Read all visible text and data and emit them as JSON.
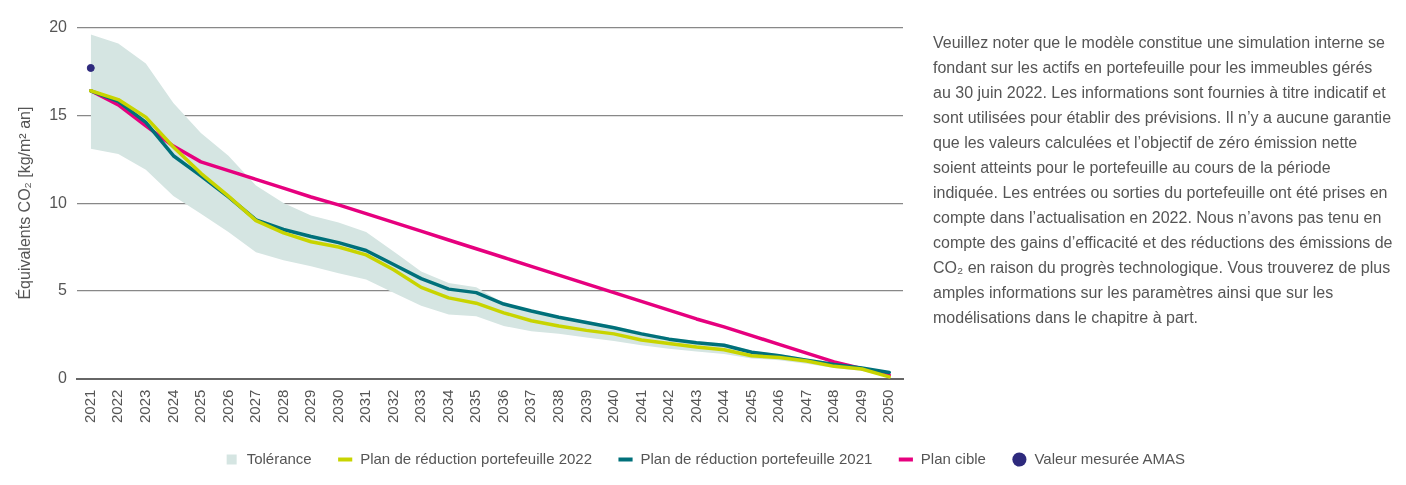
{
  "chart_data": {
    "type": "line",
    "ylabel": "Équivalents CO₂ [kg/m² an]",
    "categories": [
      "2021",
      "2022",
      "2023",
      "2024",
      "2025",
      "2026",
      "2027",
      "2028",
      "2029",
      "2030",
      "2031",
      "2032",
      "2033",
      "2034",
      "2035",
      "2036",
      "2037",
      "2038",
      "2039",
      "2040",
      "2041",
      "2042",
      "2043",
      "2044",
      "2045",
      "2046",
      "2047",
      "2048",
      "2049",
      "2050"
    ],
    "ylim": [
      0,
      20
    ],
    "yticks": [
      0,
      5,
      10,
      15,
      20
    ],
    "grid": "y",
    "legend": "bottom",
    "marker": "none",
    "line_style": "solid",
    "series": [
      {
        "name": "Tolérance",
        "type": "area",
        "color": "#d5e5e2",
        "lower": [
          13.1,
          12.8,
          11.9,
          10.4,
          9.4,
          8.35,
          7.2,
          6.75,
          6.4,
          6.0,
          5.65,
          4.9,
          4.15,
          3.65,
          3.55,
          3.0,
          2.7,
          2.55,
          2.35,
          2.15,
          1.9,
          1.7,
          1.55,
          1.4,
          1.15,
          1.05,
          0.85,
          0.6,
          0.45,
          0.05
        ],
        "values": [
          null,
          null,
          null,
          null,
          null,
          null,
          null,
          null,
          null,
          null,
          null,
          null,
          null,
          null,
          null,
          null,
          null,
          null,
          null,
          null,
          null,
          null,
          null,
          null,
          null,
          null,
          null,
          null,
          null,
          null
        ],
        "upper": [
          19.6,
          19.1,
          17.95,
          15.7,
          14.0,
          12.7,
          11.0,
          10.0,
          9.3,
          8.9,
          8.35,
          7.25,
          6.1,
          5.45,
          5.2,
          4.3,
          3.9,
          3.55,
          3.3,
          3.0,
          2.65,
          2.35,
          2.15,
          2.0,
          1.6,
          1.4,
          1.15,
          0.9,
          0.65,
          0.4
        ]
      },
      {
        "name": "Plan de réduction portefeuille 2022",
        "type": "line",
        "color": "#c8d400",
        "values": [
          16.4,
          15.9,
          14.9,
          13.2,
          11.7,
          10.4,
          9.0,
          8.3,
          7.8,
          7.5,
          7.05,
          6.2,
          5.2,
          4.6,
          4.3,
          3.75,
          3.3,
          3.0,
          2.75,
          2.55,
          2.2,
          2.0,
          1.8,
          1.65,
          1.3,
          1.2,
          1.0,
          0.7,
          0.55,
          0.1
        ]
      },
      {
        "name": "Plan de réduction portefeuille 2021",
        "type": "line",
        "color": "#00707a",
        "values": [
          16.4,
          15.8,
          14.6,
          12.7,
          11.55,
          10.35,
          9.05,
          8.5,
          8.1,
          7.75,
          7.3,
          6.5,
          5.7,
          5.1,
          4.9,
          4.25,
          3.85,
          3.5,
          3.2,
          2.9,
          2.55,
          2.25,
          2.05,
          1.9,
          1.5,
          1.3,
          1.05,
          0.8,
          0.6,
          0.35
        ]
      },
      {
        "name": "Plan cible",
        "type": "line",
        "color": "#e6007e",
        "values": [
          16.4,
          15.6,
          14.4,
          13.25,
          12.35,
          11.85,
          11.35,
          10.85,
          10.35,
          9.9,
          9.4,
          8.9,
          8.4,
          7.9,
          7.4,
          6.9,
          6.4,
          5.9,
          5.4,
          4.9,
          4.4,
          3.9,
          3.4,
          2.95,
          2.45,
          1.95,
          1.45,
          0.95,
          null,
          0.2
        ]
      },
      {
        "name": "Valeur mesurée AMAS",
        "type": "scatter",
        "color": "#2e2a7d",
        "marker": "circle",
        "values": [
          17.7,
          null,
          null,
          null,
          null,
          null,
          null,
          null,
          null,
          null,
          null,
          null,
          null,
          null,
          null,
          null,
          null,
          null,
          null,
          null,
          null,
          null,
          null,
          null,
          null,
          null,
          null,
          null,
          null,
          null
        ]
      }
    ],
    "annotations": [
      "Veuillez noter que le modèle constitue une simulation interne se fondant sur les actifs en portefeuille pour les immeubles gérés au 30 juin 2022. Les informations sont fournies à titre indicatif et sont utilisées pour établir des prévisions. Il n’y a aucune garantie que les valeurs calculées et l’objectif de zéro émission nette soient atteints pour le portefeuille au cours de la période indiquée. Les entrées ou sorties du portefeuille ont été prises en compte dans l’actualisation en 2022. Nous n’avons pas tenu en compte des gains d’efficacité et des réductions des émissions de CO₂ en raison du progrès technologique. Vous trouverez de plus amples informations sur les paramètres ainsi que sur les modélisations dans le chapitre à part."
    ]
  }
}
